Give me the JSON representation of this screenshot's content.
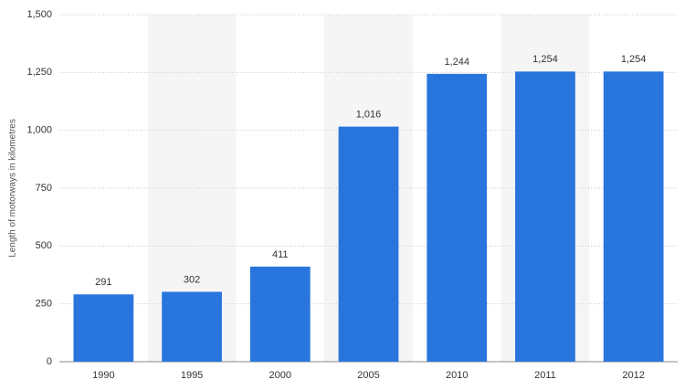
{
  "chart_data": {
    "type": "bar",
    "y_label": "Length of motorways in kilometres",
    "categories": [
      "1990",
      "1995",
      "2000",
      "2005",
      "2010",
      "2011",
      "2012"
    ],
    "values": [
      291,
      302,
      411,
      1016,
      1244,
      1254,
      1254
    ],
    "value_labels": [
      "291",
      "302",
      "411",
      "1,016",
      "1,244",
      "1,254",
      "1,254"
    ],
    "color": "#2876dd",
    "ylim": [
      0,
      1500
    ],
    "yticks": [
      0,
      250,
      500,
      750,
      {
        "value": 1000,
        "label": "1,000"
      },
      {
        "value": 1250,
        "label": "1,250"
      },
      {
        "value": 1500,
        "label": "1,500"
      }
    ],
    "grid": true
  }
}
